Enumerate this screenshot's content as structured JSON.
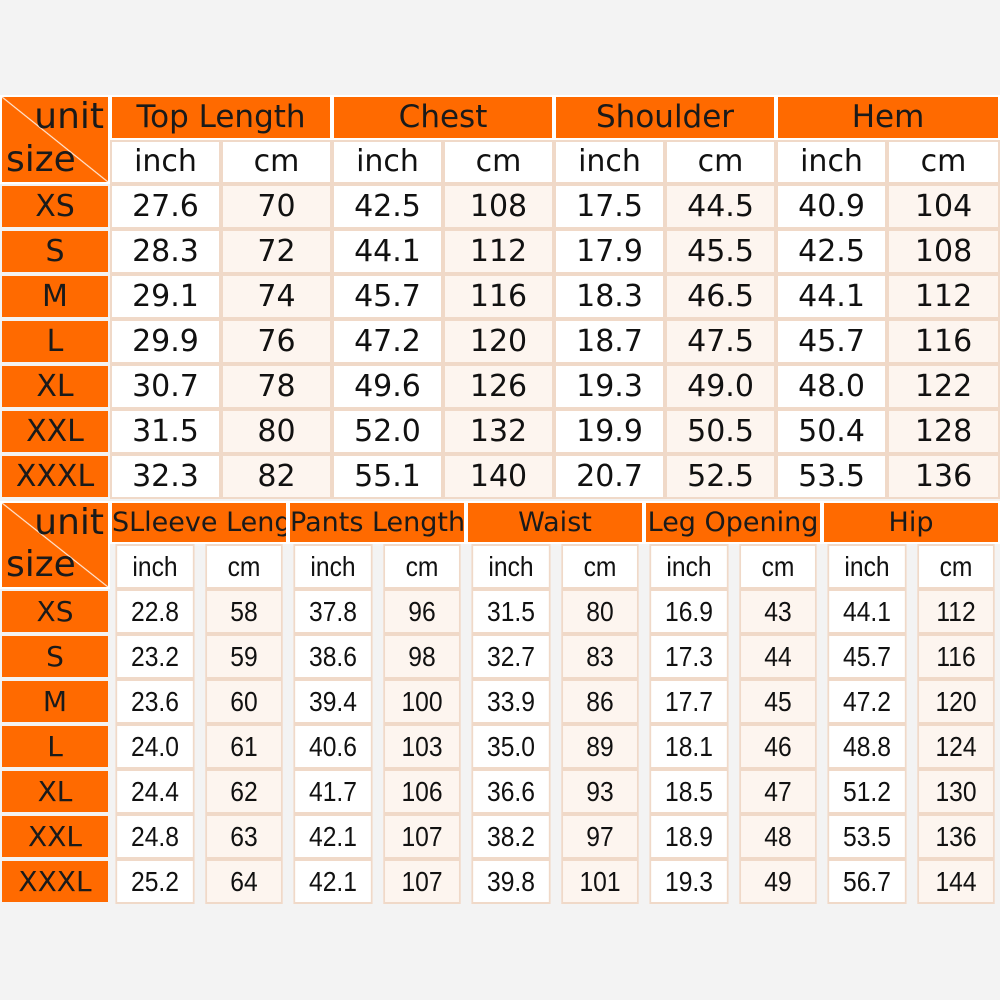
{
  "corner": {
    "unit": "unit",
    "size": "size"
  },
  "units": {
    "inch": "inch",
    "cm": "cm"
  },
  "top_table": {
    "groups": [
      "Top Length",
      "Chest",
      "Shoulder",
      "Hem"
    ],
    "rows": [
      {
        "size": "XS",
        "values": [
          "27.6",
          "70",
          "42.5",
          "108",
          "17.5",
          "44.5",
          "40.9",
          "104"
        ]
      },
      {
        "size": "S",
        "values": [
          "28.3",
          "72",
          "44.1",
          "112",
          "17.9",
          "45.5",
          "42.5",
          "108"
        ]
      },
      {
        "size": "M",
        "values": [
          "29.1",
          "74",
          "45.7",
          "116",
          "18.3",
          "46.5",
          "44.1",
          "112"
        ]
      },
      {
        "size": "L",
        "values": [
          "29.9",
          "76",
          "47.2",
          "120",
          "18.7",
          "47.5",
          "45.7",
          "116"
        ]
      },
      {
        "size": "XL",
        "values": [
          "30.7",
          "78",
          "49.6",
          "126",
          "19.3",
          "49.0",
          "48.0",
          "122"
        ]
      },
      {
        "size": "XXL",
        "values": [
          "31.5",
          "80",
          "52.0",
          "132",
          "19.9",
          "50.5",
          "50.4",
          "128"
        ]
      },
      {
        "size": "XXXL",
        "values": [
          "32.3",
          "82",
          "55.1",
          "140",
          "20.7",
          "52.5",
          "53.5",
          "136"
        ]
      }
    ]
  },
  "bottom_table": {
    "groups": [
      "SLleeve Length",
      "Pants Length",
      "Waist",
      "Leg Opening",
      "Hip"
    ],
    "rows": [
      {
        "size": "XS",
        "values": [
          "22.8",
          "58",
          "37.8",
          "96",
          "31.5",
          "80",
          "16.9",
          "43",
          "44.1",
          "112"
        ]
      },
      {
        "size": "S",
        "values": [
          "23.2",
          "59",
          "38.6",
          "98",
          "32.7",
          "83",
          "17.3",
          "44",
          "45.7",
          "116"
        ]
      },
      {
        "size": "M",
        "values": [
          "23.6",
          "60",
          "39.4",
          "100",
          "33.9",
          "86",
          "17.7",
          "45",
          "47.2",
          "120"
        ]
      },
      {
        "size": "L",
        "values": [
          "24.0",
          "61",
          "40.6",
          "103",
          "35.0",
          "89",
          "18.1",
          "46",
          "48.8",
          "124"
        ]
      },
      {
        "size": "XL",
        "values": [
          "24.4",
          "62",
          "41.7",
          "106",
          "36.6",
          "93",
          "18.5",
          "47",
          "51.2",
          "130"
        ]
      },
      {
        "size": "XXL",
        "values": [
          "24.8",
          "63",
          "42.1",
          "107",
          "38.2",
          "97",
          "18.9",
          "48",
          "53.5",
          "136"
        ]
      },
      {
        "size": "XXXL",
        "values": [
          "25.2",
          "64",
          "42.1",
          "107",
          "39.8",
          "101",
          "19.3",
          "49",
          "56.7",
          "144"
        ]
      }
    ]
  },
  "colors": {
    "header_orange": "#ff6a00",
    "cell_white": "#ffffff",
    "cell_border": "#f0d9c8"
  }
}
